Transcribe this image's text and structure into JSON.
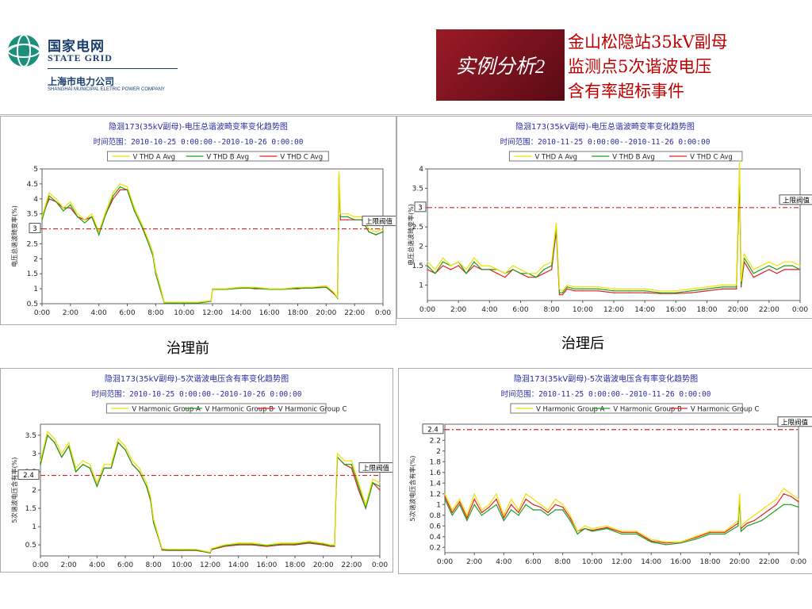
{
  "logo": {
    "cn": "国家电网",
    "en": "STATE GRID",
    "sub": "上海市电力公司",
    "sub_en": "SHANGHAI MUNICIPAL ELETRIC POWER COMPANY"
  },
  "banner": "实例分析2",
  "title_lines": [
    "金山松隐站35kV副母",
    "监测点5次谐波电压",
    "含有率超标事件"
  ],
  "captions": {
    "before": "治理前",
    "after": "治理后"
  },
  "colors": {
    "series_a": "#f0e000",
    "series_b": "#1e9e1e",
    "series_c": "#e02020",
    "limit": "#e02020",
    "title_text": "#2a2aa0",
    "banner": "#8b1522"
  },
  "chart_data": [
    {
      "type": "line",
      "title": "隐洄173(35kV副母)-电压总谐波畸变率变化趋势图",
      "subtitle": "时间范围：2010-10-25 0:00:00--2010-10-26 0:00:00",
      "ylabel": "电压总谐波畸变率(%)",
      "ylim": [
        0.5,
        5
      ],
      "yticks": [
        0.5,
        1,
        1.5,
        2,
        2.5,
        3,
        3.5,
        4,
        4.5,
        5
      ],
      "xticks": [
        "0:00",
        "2:00",
        "4:00",
        "6:00",
        "8:00",
        "10:00",
        "12:00",
        "14:00",
        "16:00",
        "18:00",
        "20:00",
        "22:00",
        "0:00"
      ],
      "x_hours": [
        0,
        0.5,
        1,
        1.5,
        2,
        2.5,
        3,
        3.5,
        4,
        4.5,
        5,
        5.5,
        6,
        6.5,
        7,
        7.5,
        7.8,
        8,
        8.3,
        8.6,
        9,
        10,
        11,
        11.9,
        12,
        13,
        14,
        15,
        16,
        17,
        18,
        19,
        20,
        20.5,
        20.8,
        20.9,
        21,
        21.5,
        22,
        22.5,
        23,
        23.5,
        24
      ],
      "series": [
        {
          "name": "V THD A Avg",
          "values": [
            3.4,
            4.2,
            4.0,
            3.7,
            3.9,
            3.5,
            3.3,
            3.5,
            2.9,
            3.6,
            4.2,
            4.5,
            4.4,
            3.7,
            3.2,
            2.6,
            2.2,
            1.6,
            1.1,
            0.55,
            0.55,
            0.55,
            0.55,
            0.6,
            1.0,
            1.0,
            1.05,
            1.05,
            1.0,
            1.0,
            1.05,
            1.05,
            1.1,
            0.9,
            0.7,
            4.9,
            3.5,
            3.5,
            3.4,
            3.4,
            3.0,
            2.9,
            3.0
          ]
        },
        {
          "name": "V THD B Avg",
          "values": [
            3.3,
            4.1,
            3.9,
            3.6,
            3.8,
            3.4,
            3.2,
            3.4,
            2.8,
            3.5,
            4.1,
            4.4,
            4.3,
            3.6,
            3.1,
            2.5,
            2.1,
            1.5,
            1.0,
            0.52,
            0.52,
            0.52,
            0.52,
            0.58,
            0.98,
            0.98,
            1.02,
            1.02,
            0.98,
            0.98,
            1.02,
            1.02,
            1.05,
            0.88,
            0.68,
            4.8,
            3.4,
            3.4,
            3.3,
            3.3,
            2.9,
            2.8,
            2.9
          ]
        },
        {
          "name": "V THD C Avg",
          "values": [
            3.4,
            4.0,
            3.9,
            3.7,
            3.7,
            3.4,
            3.3,
            3.4,
            2.9,
            3.5,
            4.0,
            4.3,
            4.3,
            3.6,
            3.1,
            2.6,
            2.2,
            1.6,
            1.1,
            0.55,
            0.55,
            0.55,
            0.55,
            0.6,
            1.0,
            1.0,
            1.05,
            1.0,
            1.0,
            1.0,
            1.0,
            1.05,
            1.05,
            0.85,
            0.7,
            4.7,
            3.3,
            3.3,
            3.3,
            3.3,
            2.9,
            2.8,
            2.9
          ]
        }
      ],
      "limit": {
        "value": 3,
        "marker": "3",
        "label": "上限阀值"
      }
    },
    {
      "type": "line",
      "title": "隐洄173(35kV副母)-电压总谐波畸变率变化趋势图",
      "subtitle": "时间范围：2010-11-25 0:00:00--2010-11-26 0:00:00",
      "ylabel": "电压总谐波畸变率(%)",
      "ylim": [
        0.6,
        4
      ],
      "yticks": [
        1,
        1.5,
        2,
        2.5,
        3,
        3.5,
        4
      ],
      "xticks": [
        "0:00",
        "2:00",
        "4:00",
        "6:00",
        "8:00",
        "10:00",
        "12:00",
        "14:00",
        "16:00",
        "18:00",
        "20:00",
        "22:00",
        "0:00"
      ],
      "x_hours": [
        0,
        0.5,
        1,
        1.5,
        2,
        2.5,
        3,
        3.5,
        4,
        4.5,
        5,
        5.5,
        6,
        6.5,
        7,
        7.5,
        8,
        8.3,
        8.5,
        8.7,
        9,
        9.5,
        10,
        11,
        12,
        13,
        14,
        15,
        16,
        17,
        18,
        19,
        19.9,
        20.1,
        20.2,
        20.4,
        21,
        21.5,
        22,
        22.5,
        23,
        23.5,
        24
      ],
      "series": [
        {
          "name": "V THD A Avg",
          "values": [
            1.6,
            1.4,
            1.7,
            1.5,
            1.6,
            1.4,
            1.7,
            1.5,
            1.5,
            1.4,
            1.3,
            1.5,
            1.4,
            1.3,
            1.3,
            1.5,
            1.6,
            2.6,
            0.9,
            0.85,
            1.0,
            0.95,
            0.95,
            0.95,
            0.9,
            0.9,
            0.9,
            0.85,
            0.85,
            0.9,
            0.95,
            1.0,
            1.0,
            4.2,
            1.1,
            1.8,
            1.4,
            1.5,
            1.6,
            1.5,
            1.6,
            1.6,
            1.5
          ]
        },
        {
          "name": "V THD B Avg",
          "values": [
            1.5,
            1.3,
            1.6,
            1.5,
            1.6,
            1.3,
            1.6,
            1.4,
            1.4,
            1.4,
            1.3,
            1.4,
            1.3,
            1.3,
            1.2,
            1.4,
            1.5,
            2.5,
            0.8,
            0.8,
            0.95,
            0.9,
            0.9,
            0.9,
            0.85,
            0.85,
            0.85,
            0.8,
            0.8,
            0.85,
            0.9,
            0.95,
            0.95,
            4.0,
            1.0,
            1.7,
            1.3,
            1.4,
            1.5,
            1.4,
            1.5,
            1.5,
            1.4
          ]
        },
        {
          "name": "V THD C Avg",
          "values": [
            1.4,
            1.3,
            1.5,
            1.4,
            1.5,
            1.3,
            1.5,
            1.4,
            1.4,
            1.3,
            1.2,
            1.4,
            1.3,
            1.2,
            1.2,
            1.3,
            1.4,
            2.4,
            0.75,
            0.75,
            0.9,
            0.85,
            0.85,
            0.85,
            0.8,
            0.8,
            0.8,
            0.78,
            0.78,
            0.8,
            0.85,
            0.9,
            0.9,
            3.8,
            0.95,
            1.6,
            1.2,
            1.3,
            1.4,
            1.3,
            1.4,
            1.4,
            1.4
          ]
        }
      ],
      "limit": {
        "value": 3,
        "marker": "3",
        "label": "上限阀值"
      }
    },
    {
      "type": "line",
      "title": "隐洄173(35kV副母)-5次谐波电压含有率变化趋势图",
      "subtitle": "时间范围：2010-10-25 0:00:00--2010-10-26 0:00:00",
      "ylabel": "5次谐波电压含有率(%)",
      "ylim": [
        0.2,
        3.8
      ],
      "yticks": [
        0.5,
        1,
        1.5,
        2,
        2.5,
        3,
        3.5
      ],
      "xticks": [
        "0:00",
        "2:00",
        "4:00",
        "6:00",
        "8:00",
        "10:00",
        "12:00",
        "14:00",
        "16:00",
        "18:00",
        "20:00",
        "22:00",
        "0:00"
      ],
      "x_hours": [
        0,
        0.5,
        1,
        1.5,
        2,
        2.5,
        3,
        3.5,
        4,
        4.5,
        5,
        5.5,
        6,
        6.5,
        7,
        7.5,
        7.8,
        8,
        8.3,
        8.6,
        9,
        10,
        11,
        12,
        12.1,
        13,
        14,
        15,
        16,
        17,
        18,
        19,
        20,
        20.5,
        20.8,
        20.9,
        21,
        21.5,
        22,
        22.5,
        23,
        23.5,
        24
      ],
      "series": [
        {
          "name": "V Harmonic Group A",
          "values": [
            2.8,
            3.6,
            3.4,
            3.0,
            3.3,
            2.6,
            2.8,
            2.7,
            2.2,
            2.7,
            2.7,
            3.4,
            3.2,
            2.8,
            2.6,
            2.2,
            1.8,
            1.2,
            0.8,
            0.4,
            0.38,
            0.38,
            0.38,
            0.3,
            0.4,
            0.5,
            0.55,
            0.55,
            0.5,
            0.55,
            0.55,
            0.6,
            0.55,
            0.5,
            0.5,
            2.0,
            3.0,
            2.8,
            2.8,
            2.2,
            1.6,
            2.3,
            2.2
          ]
        },
        {
          "name": "V Harmonic Group B",
          "values": [
            2.7,
            3.5,
            3.3,
            2.9,
            3.2,
            2.5,
            2.7,
            2.6,
            2.1,
            2.6,
            2.6,
            3.3,
            3.1,
            2.7,
            2.5,
            2.1,
            1.7,
            1.1,
            0.75,
            0.38,
            0.36,
            0.36,
            0.36,
            0.28,
            0.38,
            0.48,
            0.52,
            0.52,
            0.48,
            0.52,
            0.52,
            0.57,
            0.52,
            0.48,
            0.48,
            1.9,
            2.9,
            2.7,
            2.7,
            2.1,
            1.5,
            2.2,
            2.1
          ]
        },
        {
          "name": "V Harmonic Group C",
          "values": [
            2.7,
            3.5,
            3.3,
            2.9,
            3.2,
            2.5,
            2.7,
            2.6,
            2.1,
            2.6,
            2.6,
            3.3,
            3.1,
            2.7,
            2.5,
            2.1,
            1.7,
            1.1,
            0.75,
            0.36,
            0.35,
            0.35,
            0.35,
            0.28,
            0.37,
            0.46,
            0.5,
            0.5,
            0.46,
            0.5,
            0.5,
            0.55,
            0.5,
            0.46,
            0.46,
            1.9,
            2.9,
            2.7,
            2.6,
            2.0,
            1.5,
            2.2,
            2.0
          ]
        }
      ],
      "limit": {
        "value": 2.4,
        "marker": "2.4",
        "label": "上限阀值"
      }
    },
    {
      "type": "line",
      "title": "隐洄173(35kV副母)-5次谐波电压含有率变化趋势图",
      "subtitle": "时间范围：2010-11-25 0:00:00--2010-11-26 0:00:00",
      "ylabel": "5次谐波电压含有率(%)",
      "ylim": [
        0.1,
        2.5
      ],
      "yticks": [
        0.2,
        0.4,
        0.6,
        0.8,
        1,
        1.2,
        1.4,
        1.6,
        1.8,
        2,
        2.2,
        2.4
      ],
      "xticks": [
        "0:00",
        "2:00",
        "4:00",
        "6:00",
        "8:00",
        "10:00",
        "12:00",
        "14:00",
        "16:00",
        "18:00",
        "20:00",
        "22:00",
        "0:00"
      ],
      "x_hours": [
        0,
        0.5,
        1,
        1.5,
        2,
        2.5,
        3,
        3.5,
        4,
        4.5,
        5,
        5.5,
        6,
        6.5,
        7,
        7.5,
        8,
        8.5,
        9,
        9.5,
        10,
        11,
        12,
        13,
        14,
        15,
        16,
        17,
        18,
        19,
        19.9,
        20,
        20.1,
        20.5,
        21,
        21.5,
        22,
        22.5,
        23,
        23.5,
        24
      ],
      "series": [
        {
          "name": "V Harmonic Group A",
          "values": [
            1.2,
            0.9,
            1.1,
            0.8,
            1.2,
            0.9,
            1.0,
            1.2,
            0.8,
            1.1,
            0.9,
            1.2,
            1.1,
            1.0,
            0.9,
            1.1,
            1.0,
            0.8,
            0.5,
            0.6,
            0.55,
            0.6,
            0.5,
            0.5,
            0.35,
            0.3,
            0.3,
            0.4,
            0.5,
            0.5,
            0.7,
            1.2,
            0.6,
            0.7,
            0.8,
            0.9,
            1.0,
            1.1,
            1.3,
            1.2,
            1.1
          ]
        },
        {
          "name": "V Harmonic Group B",
          "values": [
            1.1,
            0.8,
            1.0,
            0.7,
            1.0,
            0.8,
            0.9,
            1.0,
            0.7,
            0.9,
            0.8,
            1.0,
            0.9,
            0.9,
            0.8,
            0.9,
            0.9,
            0.7,
            0.45,
            0.55,
            0.5,
            0.55,
            0.45,
            0.45,
            0.3,
            0.25,
            0.28,
            0.35,
            0.45,
            0.45,
            0.6,
            1.1,
            0.5,
            0.6,
            0.65,
            0.7,
            0.8,
            0.9,
            1.0,
            1.0,
            0.95
          ]
        },
        {
          "name": "V Harmonic Group C",
          "values": [
            1.15,
            0.85,
            1.05,
            0.75,
            1.1,
            0.85,
            0.95,
            1.1,
            0.75,
            1.0,
            0.85,
            1.1,
            1.0,
            0.95,
            0.85,
            1.0,
            0.95,
            0.75,
            0.5,
            0.55,
            0.52,
            0.57,
            0.48,
            0.48,
            0.32,
            0.28,
            0.3,
            0.38,
            0.48,
            0.48,
            0.65,
            1.15,
            0.55,
            0.65,
            0.7,
            0.8,
            0.9,
            1.0,
            1.2,
            1.15,
            1.05
          ]
        }
      ],
      "limit": {
        "value": 2.4,
        "marker": "2.4",
        "label": "上限阀值"
      }
    }
  ]
}
